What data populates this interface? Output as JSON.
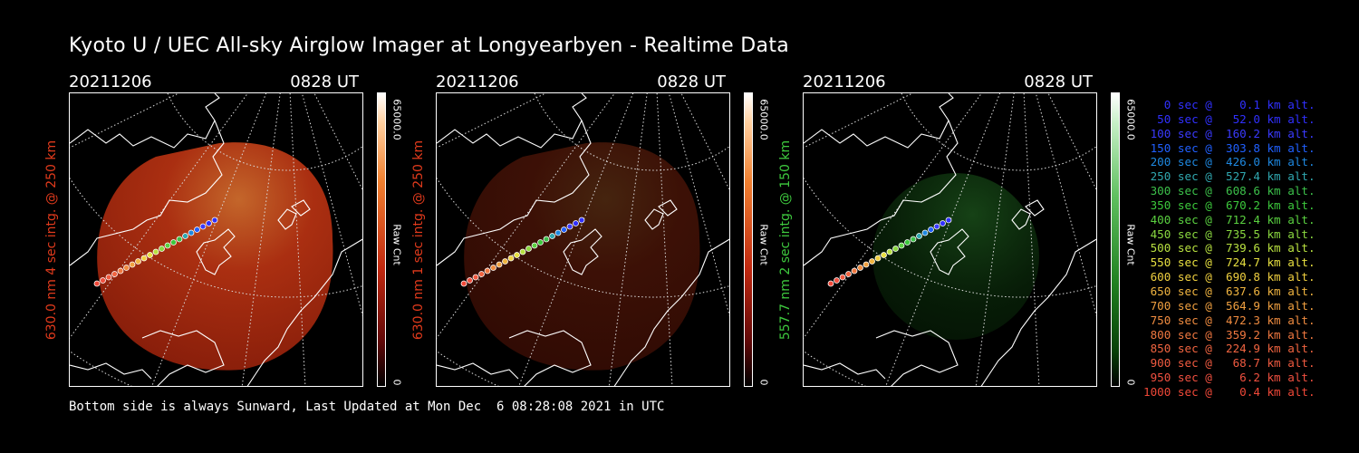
{
  "header": {
    "title": "Kyoto U / UEC All-sky Airglow Imager at Longyearbyen - Realtime Data"
  },
  "panels": [
    {
      "date": "20211206",
      "time": "0828 UT",
      "label": "630.0 nm 4 sec intg. @ 250 km",
      "label_color": "#e03a1c",
      "cbar_max": "65000.0",
      "cbar_unit": "Raw Cnt",
      "cbar_min": "0",
      "palette": "red",
      "brightness": 0.85
    },
    {
      "date": "20211206",
      "time": "0828 UT",
      "label": "630.0 nm 1 sec intg. @ 250 km",
      "label_color": "#e03a1c",
      "cbar_max": "65000.0",
      "cbar_unit": "Raw Cnt",
      "cbar_min": "0",
      "palette": "red",
      "brightness": 0.3
    },
    {
      "date": "20211206",
      "time": "0828 UT",
      "label": "557.7 nm 2 sec intg. @ 150 km",
      "label_color": "#3ec93e",
      "cbar_max": "65000.0",
      "cbar_unit": "Raw Cnt",
      "cbar_min": "0",
      "palette": "green",
      "brightness": 0.35
    }
  ],
  "footer": {
    "text": "Bottom side is always Sunward, Last Updated at Mon Dec  6 08:28:08 2021 in UTC"
  },
  "legend": [
    {
      "text": "   0 sec @    0.1 km alt.",
      "color": "#3030ff"
    },
    {
      "text": "  50 sec @   52.0 km alt.",
      "color": "#3030ff"
    },
    {
      "text": " 100 sec @  160.2 km alt.",
      "color": "#3a3aff"
    },
    {
      "text": " 150 sec @  303.8 km alt.",
      "color": "#2060ff"
    },
    {
      "text": " 200 sec @  426.0 km alt.",
      "color": "#1e88e0"
    },
    {
      "text": " 250 sec @  527.4 km alt.",
      "color": "#30a8b0"
    },
    {
      "text": " 300 sec @  608.6 km alt.",
      "color": "#3cc04a"
    },
    {
      "text": " 350 sec @  670.2 km alt.",
      "color": "#3cc83c"
    },
    {
      "text": " 400 sec @  712.4 km alt.",
      "color": "#5ad040"
    },
    {
      "text": " 450 sec @  735.5 km alt.",
      "color": "#8ad840"
    },
    {
      "text": " 500 sec @  739.6 km alt.",
      "color": "#b8e040"
    },
    {
      "text": " 550 sec @  724.7 km alt.",
      "color": "#e8e040"
    },
    {
      "text": " 600 sec @  690.8 km alt.",
      "color": "#f0d040"
    },
    {
      "text": " 650 sec @  637.6 km alt.",
      "color": "#f0b440"
    },
    {
      "text": " 700 sec @  564.9 km alt.",
      "color": "#f0a040"
    },
    {
      "text": " 750 sec @  472.3 km alt.",
      "color": "#f08c40"
    },
    {
      "text": " 800 sec @  359.2 km alt.",
      "color": "#f07840"
    },
    {
      "text": " 850 sec @  224.9 km alt.",
      "color": "#f06440"
    },
    {
      "text": " 900 sec @   68.7 km alt.",
      "color": "#f05a40"
    },
    {
      "text": " 950 sec @    6.2 km alt.",
      "color": "#f05040"
    },
    {
      "text": "1000 sec @    0.4 km alt.",
      "color": "#f04838"
    }
  ]
}
